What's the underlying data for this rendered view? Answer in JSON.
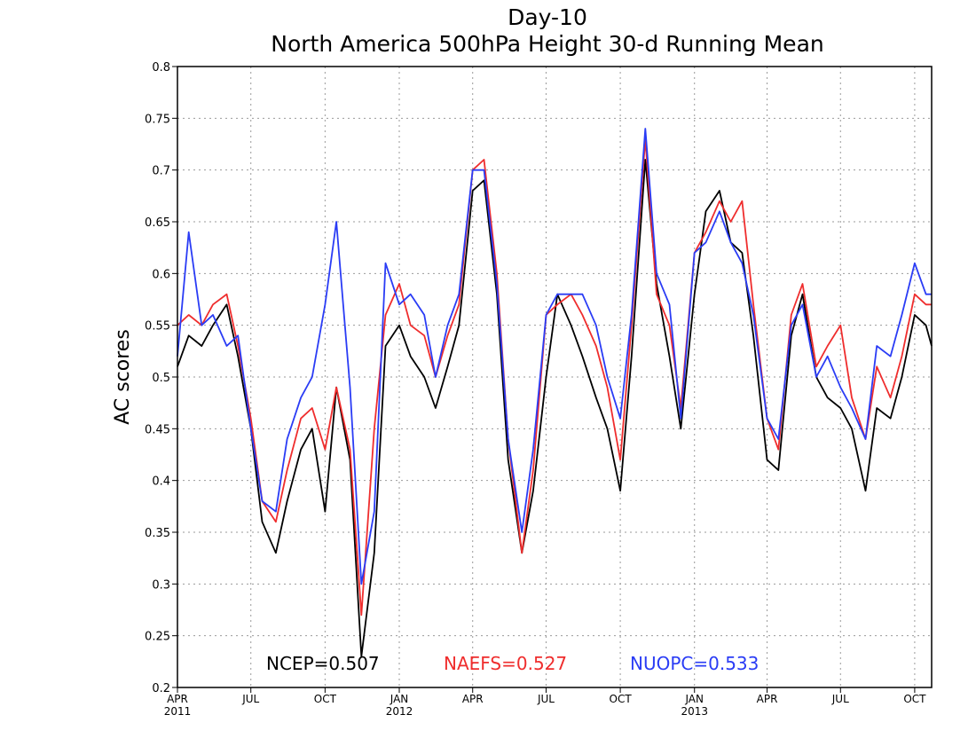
{
  "chart_data": {
    "type": "line",
    "title": "Day-10",
    "subtitle": "North America 500hPa Height 30-d Running Mean",
    "xlabel": "",
    "ylabel": "AC scores",
    "ylim": [
      0.2,
      0.8
    ],
    "yticks": [
      "0.2",
      "0.25",
      "0.3",
      "0.35",
      "0.4",
      "0.45",
      "0.5",
      "0.55",
      "0.6",
      "0.65",
      "0.7",
      "0.75",
      "0.8"
    ],
    "xlim": [
      "2011-04-01",
      "2013-10-22"
    ],
    "xticks": [
      {
        "date": "2011-04-01",
        "label": "APR",
        "year": "2011"
      },
      {
        "date": "2011-07-01",
        "label": "JUL",
        "year": ""
      },
      {
        "date": "2011-10-01",
        "label": "OCT",
        "year": ""
      },
      {
        "date": "2012-01-01",
        "label": "JAN",
        "year": "2012"
      },
      {
        "date": "2012-04-01",
        "label": "APR",
        "year": ""
      },
      {
        "date": "2012-07-01",
        "label": "JUL",
        "year": ""
      },
      {
        "date": "2012-10-01",
        "label": "OCT",
        "year": ""
      },
      {
        "date": "2013-01-01",
        "label": "JAN",
        "year": "2013"
      },
      {
        "date": "2013-04-01",
        "label": "APR",
        "year": ""
      },
      {
        "date": "2013-07-01",
        "label": "JUL",
        "year": ""
      },
      {
        "date": "2013-10-01",
        "label": "OCT",
        "year": ""
      }
    ],
    "grid": true,
    "x": [
      "2011-04-01",
      "2011-04-15",
      "2011-05-01",
      "2011-05-15",
      "2011-06-01",
      "2011-06-15",
      "2011-07-01",
      "2011-07-15",
      "2011-08-01",
      "2011-08-15",
      "2011-09-01",
      "2011-09-15",
      "2011-10-01",
      "2011-10-15",
      "2011-11-01",
      "2011-11-15",
      "2011-12-01",
      "2011-12-15",
      "2012-01-01",
      "2012-01-15",
      "2012-02-01",
      "2012-02-15",
      "2012-03-01",
      "2012-03-15",
      "2012-04-01",
      "2012-04-15",
      "2012-05-01",
      "2012-05-15",
      "2012-06-01",
      "2012-06-15",
      "2012-07-01",
      "2012-07-15",
      "2012-08-01",
      "2012-08-15",
      "2012-09-01",
      "2012-09-15",
      "2012-10-01",
      "2012-10-15",
      "2012-11-01",
      "2012-11-15",
      "2012-12-01",
      "2012-12-15",
      "2013-01-01",
      "2013-01-15",
      "2013-02-01",
      "2013-02-15",
      "2013-03-01",
      "2013-03-15",
      "2013-04-01",
      "2013-04-15",
      "2013-05-01",
      "2013-05-15",
      "2013-06-01",
      "2013-06-15",
      "2013-07-01",
      "2013-07-15",
      "2013-08-01",
      "2013-08-15",
      "2013-09-01",
      "2013-09-15",
      "2013-10-01",
      "2013-10-15",
      "2013-10-22"
    ],
    "series": [
      {
        "name": "NCEP",
        "color": "#000000",
        "values": [
          0.51,
          0.54,
          0.53,
          0.55,
          0.57,
          0.52,
          0.45,
          0.36,
          0.33,
          0.38,
          0.43,
          0.45,
          0.37,
          0.49,
          0.42,
          0.23,
          0.33,
          0.53,
          0.55,
          0.52,
          0.5,
          0.47,
          0.51,
          0.55,
          0.68,
          0.69,
          0.58,
          0.42,
          0.33,
          0.39,
          0.5,
          0.58,
          0.55,
          0.52,
          0.48,
          0.45,
          0.39,
          0.52,
          0.71,
          0.59,
          0.52,
          0.45,
          0.58,
          0.66,
          0.68,
          0.63,
          0.62,
          0.54,
          0.42,
          0.41,
          0.54,
          0.58,
          0.5,
          0.48,
          0.47,
          0.45,
          0.39,
          0.47,
          0.46,
          0.5,
          0.56,
          0.55,
          0.53
        ]
      },
      {
        "name": "NAEFS",
        "color": "#ef2d2d",
        "values": [
          0.55,
          0.56,
          0.55,
          0.57,
          0.58,
          0.53,
          0.46,
          0.38,
          0.36,
          0.41,
          0.46,
          0.47,
          0.43,
          0.49,
          0.43,
          0.27,
          0.45,
          0.56,
          0.59,
          0.55,
          0.54,
          0.5,
          0.54,
          0.57,
          0.7,
          0.71,
          0.6,
          0.44,
          0.33,
          0.41,
          0.56,
          0.57,
          0.58,
          0.56,
          0.53,
          0.49,
          0.42,
          0.55,
          0.73,
          0.58,
          0.55,
          0.47,
          0.62,
          0.64,
          0.67,
          0.65,
          0.67,
          0.57,
          0.46,
          0.43,
          0.56,
          0.59,
          0.51,
          0.53,
          0.55,
          0.48,
          0.44,
          0.51,
          0.48,
          0.52,
          0.58,
          0.57,
          0.57
        ]
      },
      {
        "name": "NUOPC",
        "color": "#2a3cf5",
        "values": [
          0.52,
          0.64,
          0.55,
          0.56,
          0.53,
          0.54,
          0.45,
          0.38,
          0.37,
          0.44,
          0.48,
          0.5,
          0.57,
          0.65,
          0.49,
          0.3,
          0.37,
          0.61,
          0.57,
          0.58,
          0.56,
          0.5,
          0.55,
          0.58,
          0.7,
          0.7,
          0.59,
          0.44,
          0.35,
          0.43,
          0.56,
          0.58,
          0.58,
          0.58,
          0.55,
          0.5,
          0.46,
          0.56,
          0.74,
          0.6,
          0.57,
          0.46,
          0.62,
          0.63,
          0.66,
          0.63,
          0.61,
          0.56,
          0.46,
          0.44,
          0.55,
          0.57,
          0.5,
          0.52,
          0.49,
          0.47,
          0.44,
          0.53,
          0.52,
          0.56,
          0.61,
          0.58,
          0.58
        ]
      }
    ],
    "annotations": [
      {
        "series": "NCEP",
        "text": "NCEP=0.507",
        "color": "#000000"
      },
      {
        "series": "NAEFS",
        "text": "NAEFS=0.527",
        "color": "#ef2d2d"
      },
      {
        "series": "NUOPC",
        "text": "NUOPC=0.533",
        "color": "#2a3cf5"
      }
    ]
  }
}
